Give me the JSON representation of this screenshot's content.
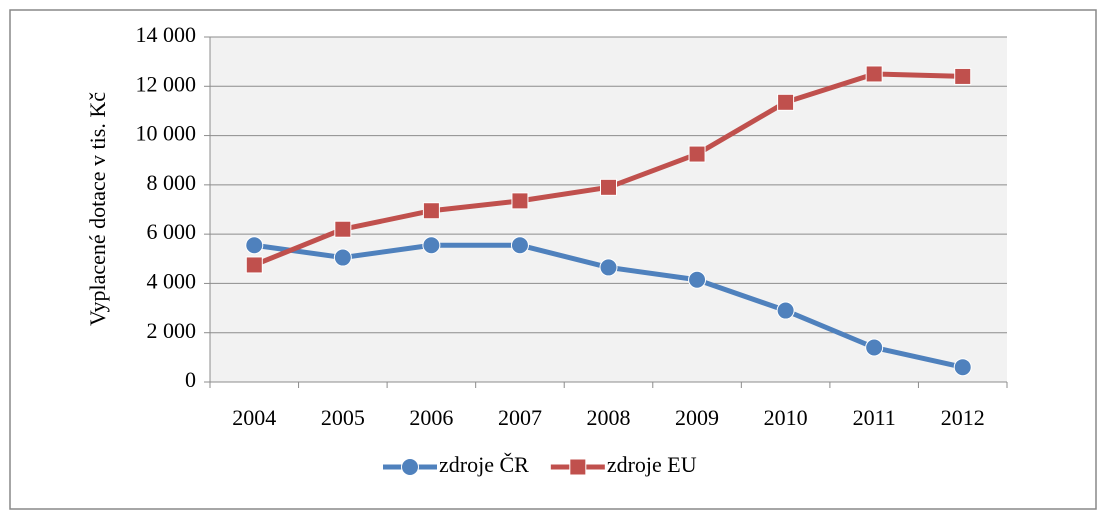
{
  "chart_data": {
    "type": "line",
    "ylabel": "Vyplacené dotace v tis. Kč",
    "categories": [
      "2004",
      "2005",
      "2006",
      "2007",
      "2008",
      "2009",
      "2010",
      "2011",
      "2012"
    ],
    "series": [
      {
        "name": "zdroje ČR",
        "color": "#4f81bd",
        "marker": "circle",
        "values": [
          5550,
          5050,
          5550,
          5550,
          4650,
          4150,
          2900,
          1400,
          600
        ]
      },
      {
        "name": "zdroje EU",
        "color": "#c0504d",
        "marker": "square",
        "values": [
          4750,
          6200,
          6950,
          7350,
          7900,
          9250,
          11350,
          12500,
          12400
        ]
      }
    ],
    "ylim": [
      0,
      14000
    ],
    "yticks": [
      0,
      {
        "value": 2000,
        "label": "2 000"
      },
      {
        "value": 4000,
        "label": "4 000"
      },
      {
        "value": 6000,
        "label": "6 000"
      },
      {
        "value": 8000,
        "label": "8 000"
      },
      {
        "value": 10000,
        "label": "10 000"
      },
      {
        "value": 12000,
        "label": "12 000"
      },
      {
        "value": 14000,
        "label": "14 000"
      }
    ],
    "grid": true,
    "legend": "bottom"
  }
}
